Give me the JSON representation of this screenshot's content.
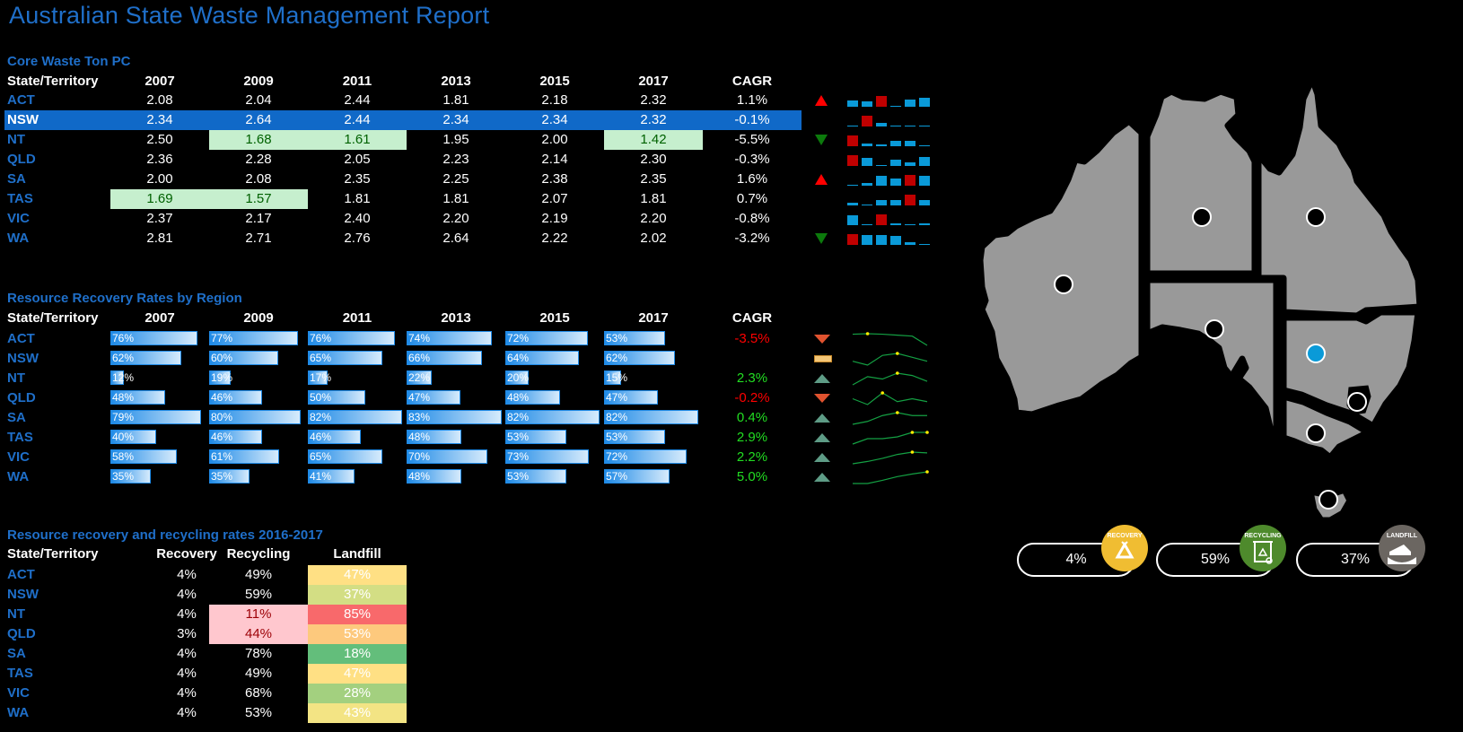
{
  "report_title": "Australian State Waste Management Report",
  "core_waste": {
    "section_title": "Core Waste Ton PC",
    "headers": [
      "State/Territory",
      "2007",
      "2009",
      "2011",
      "2013",
      "2015",
      "2017",
      "CAGR"
    ],
    "rows": [
      {
        "state": "ACT",
        "values": [
          "2.08",
          "2.04",
          "2.44",
          "1.81",
          "2.18",
          "2.32"
        ],
        "cagr": "1.1%",
        "trend": "up-red",
        "highlight": [],
        "spark": [
          {
            "h": 7,
            "c": "b"
          },
          {
            "h": 6,
            "c": "b"
          },
          {
            "h": 12,
            "c": "r"
          },
          {
            "h": 1,
            "c": "b"
          },
          {
            "h": 8,
            "c": "b"
          },
          {
            "h": 10,
            "c": "b"
          }
        ]
      },
      {
        "state": "NSW",
        "values": [
          "2.34",
          "2.64",
          "2.44",
          "2.34",
          "2.34",
          "2.32"
        ],
        "cagr": "-0.1%",
        "trend": "none",
        "highlight": [],
        "selected": true,
        "spark": [
          {
            "h": 1,
            "c": "b"
          },
          {
            "h": 12,
            "c": "r"
          },
          {
            "h": 4,
            "c": "b"
          },
          {
            "h": 1,
            "c": "b"
          },
          {
            "h": 1,
            "c": "b"
          },
          {
            "h": 1,
            "c": "b"
          }
        ]
      },
      {
        "state": "NT",
        "values": [
          "2.50",
          "1.68",
          "1.61",
          "1.95",
          "2.00",
          "1.42"
        ],
        "cagr": "-5.5%",
        "trend": "down-green",
        "highlight": [
          1,
          2,
          5
        ],
        "spark": [
          {
            "h": 12,
            "c": "r"
          },
          {
            "h": 3,
            "c": "b"
          },
          {
            "h": 2,
            "c": "b"
          },
          {
            "h": 6,
            "c": "b"
          },
          {
            "h": 6,
            "c": "b"
          },
          {
            "h": 1,
            "c": "b"
          }
        ]
      },
      {
        "state": "QLD",
        "values": [
          "2.36",
          "2.28",
          "2.05",
          "2.23",
          "2.14",
          "2.30"
        ],
        "cagr": "-0.3%",
        "trend": "none",
        "highlight": [],
        "spark": [
          {
            "h": 12,
            "c": "r"
          },
          {
            "h": 9,
            "c": "b"
          },
          {
            "h": 1,
            "c": "b"
          },
          {
            "h": 7,
            "c": "b"
          },
          {
            "h": 4,
            "c": "b"
          },
          {
            "h": 10,
            "c": "b"
          }
        ]
      },
      {
        "state": "SA",
        "values": [
          "2.00",
          "2.08",
          "2.35",
          "2.25",
          "2.38",
          "2.35"
        ],
        "cagr": "1.6%",
        "trend": "up-red",
        "highlight": [],
        "spark": [
          {
            "h": 1,
            "c": "b"
          },
          {
            "h": 3,
            "c": "b"
          },
          {
            "h": 11,
            "c": "b"
          },
          {
            "h": 8,
            "c": "b"
          },
          {
            "h": 12,
            "c": "r"
          },
          {
            "h": 11,
            "c": "b"
          }
        ]
      },
      {
        "state": "TAS",
        "values": [
          "1.69",
          "1.57",
          "1.81",
          "1.81",
          "2.07",
          "1.81"
        ],
        "cagr": "0.7%",
        "trend": "none",
        "highlight": [
          0,
          1
        ],
        "spark": [
          {
            "h": 3,
            "c": "b"
          },
          {
            "h": 1,
            "c": "b"
          },
          {
            "h": 6,
            "c": "b"
          },
          {
            "h": 6,
            "c": "b"
          },
          {
            "h": 12,
            "c": "r"
          },
          {
            "h": 6,
            "c": "b"
          }
        ]
      },
      {
        "state": "VIC",
        "values": [
          "2.37",
          "2.17",
          "2.40",
          "2.20",
          "2.19",
          "2.20"
        ],
        "cagr": "-0.8%",
        "trend": "none",
        "highlight": [],
        "spark": [
          {
            "h": 11,
            "c": "b"
          },
          {
            "h": 1,
            "c": "b"
          },
          {
            "h": 12,
            "c": "r"
          },
          {
            "h": 2,
            "c": "b"
          },
          {
            "h": 1,
            "c": "b"
          },
          {
            "h": 2,
            "c": "b"
          }
        ]
      },
      {
        "state": "WA",
        "values": [
          "2.81",
          "2.71",
          "2.76",
          "2.64",
          "2.22",
          "2.02"
        ],
        "cagr": "-3.2%",
        "trend": "down-green",
        "highlight": [],
        "spark": [
          {
            "h": 12,
            "c": "r"
          },
          {
            "h": 11,
            "c": "b"
          },
          {
            "h": 11,
            "c": "b"
          },
          {
            "h": 10,
            "c": "b"
          },
          {
            "h": 3,
            "c": "b"
          },
          {
            "h": 1,
            "c": "b"
          }
        ]
      }
    ]
  },
  "recovery_rates": {
    "section_title": "Resource Recovery Rates by Region",
    "headers": [
      "State/Territory",
      "2007",
      "2009",
      "2011",
      "2013",
      "2015",
      "2017",
      "CAGR"
    ],
    "rows": [
      {
        "state": "ACT",
        "values": [
          "76%",
          "77%",
          "76%",
          "74%",
          "72%",
          "53%"
        ],
        "cagr": "-3.5%",
        "cagr_color": "#ff0000",
        "trend": "down"
      },
      {
        "state": "NSW",
        "values": [
          "62%",
          "60%",
          "65%",
          "66%",
          "64%",
          "62%"
        ],
        "cagr": "",
        "cagr_color": "#ff0000",
        "trend": "flat"
      },
      {
        "state": "NT",
        "values": [
          "12%",
          "19%",
          "17%",
          "22%",
          "20%",
          "15%"
        ],
        "cagr": "2.3%",
        "cagr_color": "#22dd22",
        "trend": "up"
      },
      {
        "state": "QLD",
        "values": [
          "48%",
          "46%",
          "50%",
          "47%",
          "48%",
          "47%"
        ],
        "cagr": "-0.2%",
        "cagr_color": "#ff0000",
        "trend": "down"
      },
      {
        "state": "SA",
        "values": [
          "79%",
          "80%",
          "82%",
          "83%",
          "82%",
          "82%"
        ],
        "cagr": "0.4%",
        "cagr_color": "#22dd22",
        "trend": "up"
      },
      {
        "state": "TAS",
        "values": [
          "40%",
          "46%",
          "46%",
          "48%",
          "53%",
          "53%"
        ],
        "cagr": "2.9%",
        "cagr_color": "#22dd22",
        "trend": "up"
      },
      {
        "state": "VIC",
        "values": [
          "58%",
          "61%",
          "65%",
          "70%",
          "73%",
          "72%"
        ],
        "cagr": "2.2%",
        "cagr_color": "#22dd22",
        "trend": "up"
      },
      {
        "state": "WA",
        "values": [
          "35%",
          "35%",
          "41%",
          "48%",
          "53%",
          "57%"
        ],
        "cagr": "5.0%",
        "cagr_color": "#22dd22",
        "trend": "up"
      }
    ]
  },
  "rates_2016_2017": {
    "section_title": "Resource recovery and recycling rates 2016-2017",
    "headers": [
      "State/Territory",
      "Recovery",
      "Recycling",
      "Landfill"
    ],
    "rows": [
      {
        "state": "ACT",
        "recovery": "4%",
        "recycling": "49%",
        "landfill": "47%",
        "landfill_color": "#ffe084",
        "recycling_bad": false
      },
      {
        "state": "NSW",
        "recovery": "4%",
        "recycling": "59%",
        "landfill": "37%",
        "landfill_color": "#d3de84",
        "recycling_bad": false
      },
      {
        "state": "NT",
        "recovery": "4%",
        "recycling": "11%",
        "landfill": "85%",
        "landfill_color": "#f8696b",
        "recycling_bad": true
      },
      {
        "state": "QLD",
        "recovery": "3%",
        "recycling": "44%",
        "landfill": "53%",
        "landfill_color": "#fdc97d",
        "recycling_bad": true
      },
      {
        "state": "SA",
        "recovery": "4%",
        "recycling": "78%",
        "landfill": "18%",
        "landfill_color": "#63be7b",
        "recycling_bad": false
      },
      {
        "state": "TAS",
        "recovery": "4%",
        "recycling": "49%",
        "landfill": "47%",
        "landfill_color": "#ffe084",
        "recycling_bad": false
      },
      {
        "state": "VIC",
        "recovery": "4%",
        "recycling": "68%",
        "landfill": "28%",
        "landfill_color": "#a3d07f",
        "recycling_bad": false
      },
      {
        "state": "WA",
        "recovery": "4%",
        "recycling": "53%",
        "landfill": "43%",
        "landfill_color": "#f3e484",
        "recycling_bad": false
      }
    ]
  },
  "kpis": [
    {
      "label": "RECOVERY",
      "value": "4%",
      "color": "#f0bd32"
    },
    {
      "label": "RECYCLING",
      "value": "59%",
      "color": "#4e8a2c"
    },
    {
      "label": "LANDFILL",
      "value": "37%",
      "color": "#6b6661"
    }
  ],
  "map": {
    "selected_state": "NSW",
    "states": [
      "WA",
      "NT",
      "QLD",
      "SA",
      "NSW",
      "ACT",
      "VIC",
      "TAS"
    ]
  },
  "colors": {
    "accent_blue": "#1f6fc9",
    "selected_row": "#1069c8",
    "spark_blue": "#0a9ad8",
    "spark_red": "#c00000",
    "map_fill": "#999999",
    "map_selected_marker": "#0a9ad8"
  }
}
